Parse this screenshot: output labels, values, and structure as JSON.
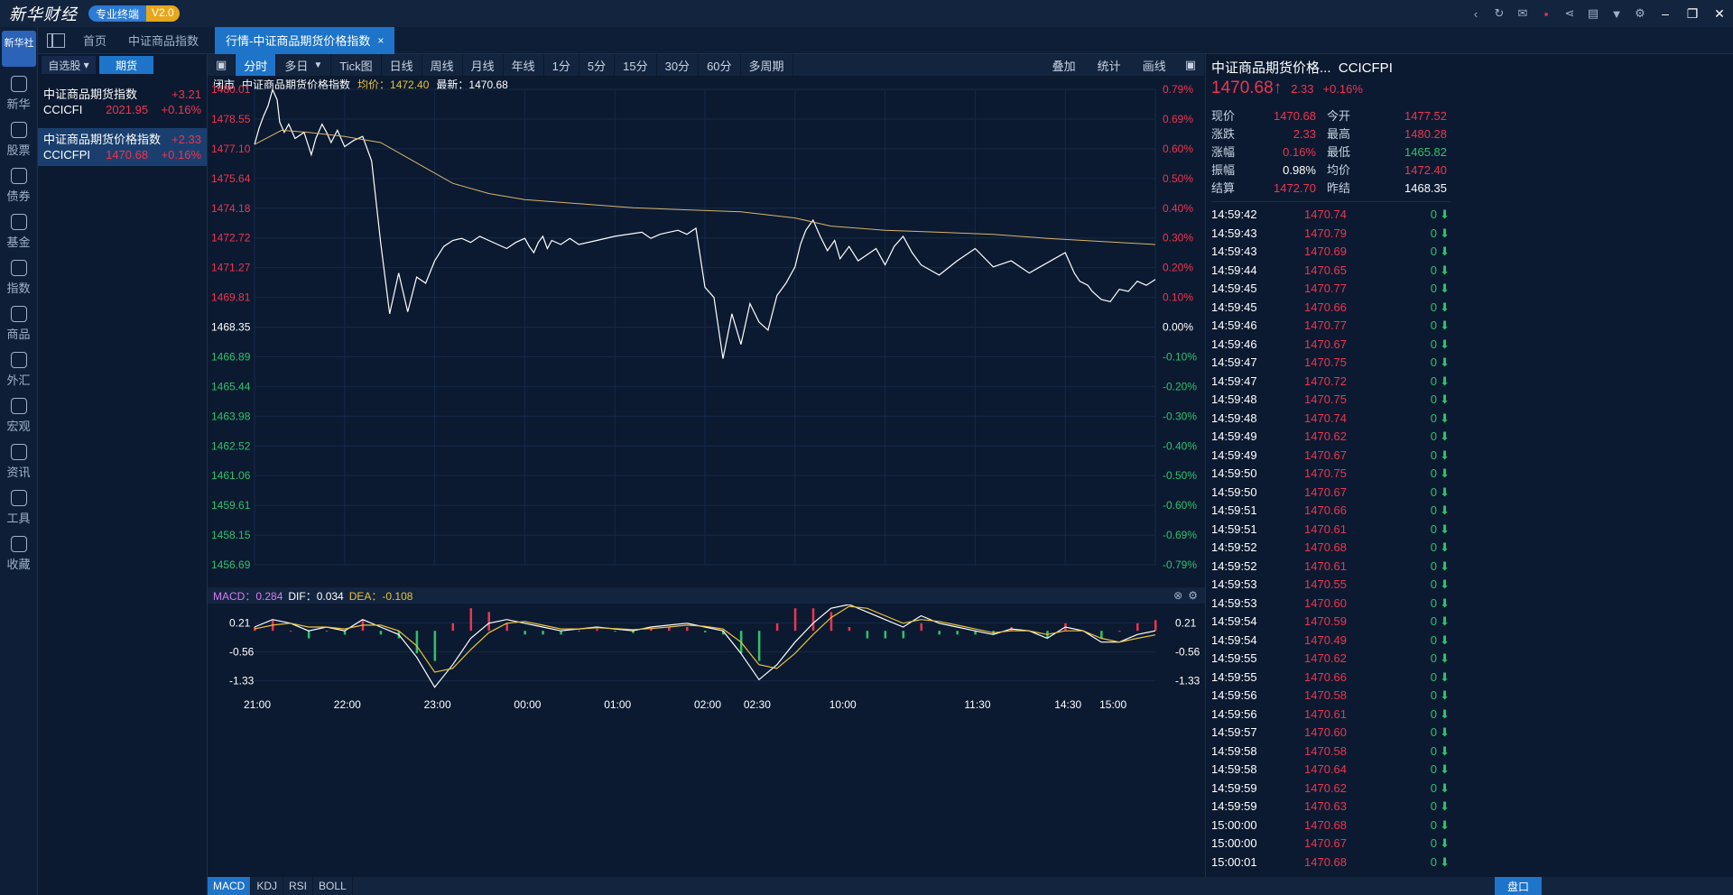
{
  "titlebar": {
    "brand": "新华财经",
    "badge_left": "专业终端",
    "badge_right": "V2.0"
  },
  "leftnav": {
    "logo": "新华社",
    "items": [
      {
        "label": "新华",
        "icon": "news-icon"
      },
      {
        "label": "股票",
        "icon": "stock-icon"
      },
      {
        "label": "债券",
        "icon": "bond-icon"
      },
      {
        "label": "基金",
        "icon": "fund-icon"
      },
      {
        "label": "指数",
        "icon": "index-icon"
      },
      {
        "label": "商品",
        "icon": "commodity-icon"
      },
      {
        "label": "外汇",
        "icon": "forex-icon"
      },
      {
        "label": "宏观",
        "icon": "macro-icon"
      },
      {
        "label": "资讯",
        "icon": "info-icon"
      },
      {
        "label": "工具",
        "icon": "tools-icon"
      },
      {
        "label": "收藏",
        "icon": "favorites-icon"
      }
    ]
  },
  "tabs": {
    "home": "首页",
    "tab2": "中证商品指数",
    "active": "行情-中证商品期货价格指数",
    "close": "×"
  },
  "watchlist": {
    "tab_self": "自选股",
    "tab_futures": "期货",
    "rows": [
      {
        "name": "中证商品期货指数",
        "change": "+3.21",
        "code": "CCICFI",
        "price": "2021.95",
        "pct": "+0.16%"
      },
      {
        "name": "中证商品期货价格指数",
        "change": "+2.33",
        "code": "CCICFPI",
        "price": "1470.68",
        "pct": "+0.16%"
      }
    ]
  },
  "chartbar": {
    "periods": [
      "分时",
      "多日",
      "Tick图",
      "日线",
      "周线",
      "月线",
      "年线",
      "1分",
      "5分",
      "15分",
      "30分",
      "60分",
      "多周期"
    ],
    "right": [
      "叠加",
      "统计",
      "画线"
    ]
  },
  "infoline": {
    "status": "闭市",
    "name": "中证商品期货价格指数",
    "avg_label": "均价：1472.40",
    "last_label": "最新：1470.68"
  },
  "macd_head": {
    "macd": "MACD：0.284",
    "dif": "DIF：0.034",
    "dea": "DEA：-0.108"
  },
  "bottombar": {
    "indicators": [
      "MACD",
      "KDJ",
      "RSI",
      "BOLL"
    ],
    "pankou": "盘口"
  },
  "quote": {
    "name": "中证商品期货价格...",
    "code": "CCICFPI",
    "price": "1470.68",
    "change": "2.33",
    "pct": "+0.16%",
    "stats": [
      {
        "k": "现价",
        "v": "1470.68",
        "vc": "red",
        "k2": "今开",
        "v2": "1477.52",
        "v2c": "red"
      },
      {
        "k": "涨跌",
        "v": "2.33",
        "vc": "red",
        "k2": "最高",
        "v2": "1480.28",
        "v2c": "red"
      },
      {
        "k": "涨幅",
        "v": "0.16%",
        "vc": "red",
        "k2": "最低",
        "v2": "1465.82",
        "v2c": "green"
      },
      {
        "k": "振幅",
        "v": "0.98%",
        "vc": "white",
        "k2": "均价",
        "v2": "1472.40",
        "v2c": "red"
      },
      {
        "k": "结算",
        "v": "1472.70",
        "vc": "red",
        "k2": "昨结",
        "v2": "1468.35",
        "v2c": "white"
      }
    ],
    "ticks": [
      [
        "14:59:42",
        "1470.74",
        "0"
      ],
      [
        "14:59:43",
        "1470.79",
        "0"
      ],
      [
        "14:59:43",
        "1470.69",
        "0"
      ],
      [
        "14:59:44",
        "1470.65",
        "0"
      ],
      [
        "14:59:45",
        "1470.77",
        "0"
      ],
      [
        "14:59:45",
        "1470.66",
        "0"
      ],
      [
        "14:59:46",
        "1470.77",
        "0"
      ],
      [
        "14:59:46",
        "1470.67",
        "0"
      ],
      [
        "14:59:47",
        "1470.75",
        "0"
      ],
      [
        "14:59:47",
        "1470.72",
        "0"
      ],
      [
        "14:59:48",
        "1470.75",
        "0"
      ],
      [
        "14:59:48",
        "1470.74",
        "0"
      ],
      [
        "14:59:49",
        "1470.62",
        "0"
      ],
      [
        "14:59:49",
        "1470.67",
        "0"
      ],
      [
        "14:59:50",
        "1470.75",
        "0"
      ],
      [
        "14:59:50",
        "1470.67",
        "0"
      ],
      [
        "14:59:51",
        "1470.66",
        "0"
      ],
      [
        "14:59:51",
        "1470.61",
        "0"
      ],
      [
        "14:59:52",
        "1470.68",
        "0"
      ],
      [
        "14:59:52",
        "1470.61",
        "0"
      ],
      [
        "14:59:53",
        "1470.55",
        "0"
      ],
      [
        "14:59:53",
        "1470.60",
        "0"
      ],
      [
        "14:59:54",
        "1470.59",
        "0"
      ],
      [
        "14:59:54",
        "1470.49",
        "0"
      ],
      [
        "14:59:55",
        "1470.62",
        "0"
      ],
      [
        "14:59:55",
        "1470.66",
        "0"
      ],
      [
        "14:59:56",
        "1470.58",
        "0"
      ],
      [
        "14:59:56",
        "1470.61",
        "0"
      ],
      [
        "14:59:57",
        "1470.60",
        "0"
      ],
      [
        "14:59:58",
        "1470.58",
        "0"
      ],
      [
        "14:59:58",
        "1470.64",
        "0"
      ],
      [
        "14:59:59",
        "1470.62",
        "0"
      ],
      [
        "14:59:59",
        "1470.63",
        "0"
      ],
      [
        "15:00:00",
        "1470.68",
        "0"
      ],
      [
        "15:00:00",
        "1470.67",
        "0"
      ],
      [
        "15:00:01",
        "1470.68",
        "0"
      ]
    ]
  },
  "chart_data": [
    {
      "type": "line",
      "xlabel": "",
      "ylabel": "",
      "ylim": [
        1456.69,
        1480.01
      ],
      "prev_close": 1468.35,
      "y_ticks": [
        "1480.01",
        "1478.55",
        "1477.10",
        "1475.64",
        "1474.18",
        "1472.72",
        "1471.27",
        "1469.81",
        "1468.35",
        "1466.89",
        "1465.44",
        "1463.98",
        "1462.52",
        "1461.06",
        "1459.61",
        "1458.15",
        "1456.69"
      ],
      "pct_ticks": [
        "0.79%",
        "0.69%",
        "0.60%",
        "0.50%",
        "0.40%",
        "0.30%",
        "0.20%",
        "0.10%",
        "0.00%",
        "-0.10%",
        "-0.20%",
        "-0.30%",
        "-0.40%",
        "-0.50%",
        "-0.60%",
        "-0.69%",
        "-0.79%"
      ],
      "x_ticks": [
        "21:00",
        "22:00",
        "23:00",
        "00:00",
        "01:00",
        "02:00",
        "02:30",
        "10:00",
        "11:30",
        "14:30",
        "15:00"
      ],
      "grid": true,
      "colors": {
        "price": "#ffffff",
        "avg": "#d7b56d",
        "up": "#f0344f",
        "down": "#2fc26b"
      },
      "series": [
        {
          "name": "最新",
          "x": [
            0,
            5,
            10,
            15,
            20,
            25,
            28,
            33,
            38,
            45,
            55,
            63,
            68,
            75,
            80,
            85,
            92,
            100,
            110,
            120,
            130,
            140,
            150,
            160,
            170,
            180,
            190,
            200,
            210,
            220,
            230,
            240,
            250,
            260,
            270,
            280,
            290,
            300,
            305,
            310,
            315,
            320,
            325,
            330,
            340,
            350,
            360,
            380,
            400,
            430,
            440,
            450,
            460,
            470,
            480,
            490,
            500,
            510,
            520,
            530,
            540,
            550,
            560,
            570,
            580,
            590,
            600,
            606,
            612,
            620,
            628,
            636,
            644,
            650,
            660,
            670,
            690,
            700,
            710,
            720,
            730,
            740,
            760,
            780,
            800,
            820,
            840,
            860,
            880,
            900,
            910,
            916,
            925,
            930,
            940,
            950,
            960,
            970,
            980,
            990,
            1000
          ],
          "y": [
            1477.3,
            1478.1,
            1478.7,
            1479.2,
            1480.0,
            1479.5,
            1478.4,
            1477.9,
            1478.3,
            1477.6,
            1477.9,
            1476.8,
            1477.6,
            1478.3,
            1477.9,
            1477.4,
            1478.0,
            1477.2,
            1477.5,
            1477.7,
            1476.5,
            1472.5,
            1469.0,
            1471.0,
            1469.1,
            1470.8,
            1470.5,
            1471.6,
            1472.3,
            1472.6,
            1472.7,
            1472.5,
            1472.8,
            1472.6,
            1472.4,
            1472.2,
            1472.5,
            1472.7,
            1472.3,
            1472.0,
            1472.5,
            1472.8,
            1472.2,
            1472.6,
            1472.4,
            1472.7,
            1472.4,
            1472.6,
            1472.8,
            1473.0,
            1472.7,
            1472.9,
            1473.0,
            1473.1,
            1472.9,
            1473.2,
            1470.3,
            1469.8,
            1466.8,
            1469.0,
            1467.5,
            1469.5,
            1468.6,
            1468.2,
            1469.9,
            1470.5,
            1471.3,
            1472.4,
            1473.1,
            1473.6,
            1472.8,
            1472.1,
            1472.6,
            1471.7,
            1472.3,
            1471.6,
            1472.2,
            1471.4,
            1472.3,
            1472.8,
            1472.0,
            1471.4,
            1470.9,
            1471.6,
            1472.2,
            1471.3,
            1471.6,
            1471.0,
            1471.5,
            1472.0,
            1471.0,
            1470.6,
            1470.4,
            1470.1,
            1469.7,
            1469.6,
            1470.2,
            1470.1,
            1470.6,
            1470.4,
            1470.68
          ]
        },
        {
          "name": "均价",
          "x": [
            0,
            30,
            60,
            100,
            140,
            180,
            220,
            260,
            300,
            360,
            420,
            480,
            540,
            600,
            640,
            700,
            760,
            820,
            880,
            940,
            1000
          ],
          "y": [
            1477.3,
            1478.0,
            1477.9,
            1477.7,
            1477.4,
            1476.4,
            1475.4,
            1474.9,
            1474.6,
            1474.4,
            1474.2,
            1474.1,
            1474.0,
            1473.7,
            1473.3,
            1473.1,
            1473.0,
            1472.9,
            1472.7,
            1472.55,
            1472.4
          ]
        }
      ]
    },
    {
      "type": "bar",
      "xlabel": "",
      "ylabel": "",
      "y_ticks": [
        "0.21",
        "-0.56",
        "-1.33"
      ],
      "ylim": [
        -1.7,
        0.7
      ],
      "colors": {
        "pos": "#f0344f",
        "neg": "#2fc26b",
        "dif": "#ffffff",
        "dea": "#e9c23a"
      },
      "series": [
        {
          "name": "DIF",
          "x": [
            0,
            20,
            40,
            60,
            80,
            100,
            120,
            140,
            160,
            180,
            200,
            220,
            240,
            260,
            280,
            300,
            320,
            340,
            360,
            380,
            400,
            420,
            440,
            460,
            480,
            500,
            520,
            540,
            560,
            580,
            600,
            620,
            640,
            660,
            680,
            700,
            720,
            740,
            760,
            780,
            800,
            820,
            840,
            860,
            880,
            900,
            920,
            940,
            960,
            980,
            1000
          ],
          "y": [
            0.1,
            0.3,
            0.2,
            0.0,
            0.1,
            0.0,
            0.3,
            0.1,
            -0.1,
            -0.7,
            -1.5,
            -0.9,
            -0.2,
            0.2,
            0.3,
            0.2,
            0.1,
            0.0,
            0.05,
            0.1,
            0.05,
            0.0,
            0.1,
            0.15,
            0.2,
            0.1,
            0.0,
            -0.6,
            -1.3,
            -0.9,
            -0.3,
            0.2,
            0.6,
            0.7,
            0.5,
            0.3,
            0.1,
            0.4,
            0.2,
            0.1,
            0.0,
            -0.1,
            0.05,
            0.0,
            -0.2,
            0.1,
            0.0,
            -0.3,
            -0.3,
            -0.1,
            0.0
          ]
        },
        {
          "name": "DEA",
          "x": [
            0,
            20,
            40,
            60,
            80,
            100,
            120,
            140,
            160,
            180,
            200,
            220,
            240,
            260,
            280,
            300,
            320,
            340,
            360,
            380,
            400,
            420,
            440,
            460,
            480,
            500,
            520,
            540,
            560,
            580,
            600,
            620,
            640,
            660,
            680,
            700,
            720,
            740,
            760,
            780,
            800,
            820,
            840,
            860,
            880,
            900,
            920,
            940,
            960,
            980,
            1000
          ],
          "y": [
            0.05,
            0.15,
            0.2,
            0.1,
            0.1,
            0.05,
            0.15,
            0.15,
            0.0,
            -0.4,
            -1.1,
            -1.0,
            -0.5,
            -0.05,
            0.2,
            0.25,
            0.15,
            0.05,
            0.05,
            0.08,
            0.06,
            0.03,
            0.06,
            0.1,
            0.15,
            0.12,
            0.05,
            -0.3,
            -0.9,
            -1.0,
            -0.6,
            -0.1,
            0.35,
            0.65,
            0.6,
            0.4,
            0.2,
            0.3,
            0.25,
            0.15,
            0.05,
            -0.05,
            0.0,
            0.0,
            -0.1,
            0.0,
            0.0,
            -0.2,
            -0.3,
            -0.2,
            -0.108
          ]
        }
      ],
      "bars_x": [
        0,
        20,
        40,
        60,
        80,
        100,
        120,
        140,
        160,
        180,
        200,
        220,
        240,
        260,
        280,
        300,
        320,
        340,
        360,
        380,
        400,
        420,
        440,
        460,
        480,
        500,
        520,
        540,
        560,
        580,
        600,
        620,
        640,
        660,
        680,
        700,
        720,
        740,
        760,
        780,
        800,
        820,
        840,
        860,
        880,
        900,
        920,
        940,
        960,
        980,
        1000
      ],
      "bars_y": [
        0.1,
        0.3,
        0.0,
        -0.2,
        0.0,
        -0.1,
        0.3,
        -0.1,
        -0.2,
        -0.6,
        -0.8,
        0.2,
        0.6,
        0.5,
        0.2,
        -0.1,
        -0.1,
        -0.1,
        0.0,
        0.05,
        -0.02,
        -0.06,
        0.08,
        0.1,
        0.1,
        -0.04,
        -0.1,
        -0.6,
        -0.8,
        0.2,
        0.6,
        0.6,
        0.5,
        0.1,
        -0.2,
        -0.2,
        -0.2,
        0.2,
        -0.1,
        -0.1,
        -0.1,
        -0.1,
        0.1,
        0.0,
        -0.2,
        0.2,
        0.0,
        -0.2,
        0.0,
        0.2,
        0.284
      ]
    }
  ]
}
